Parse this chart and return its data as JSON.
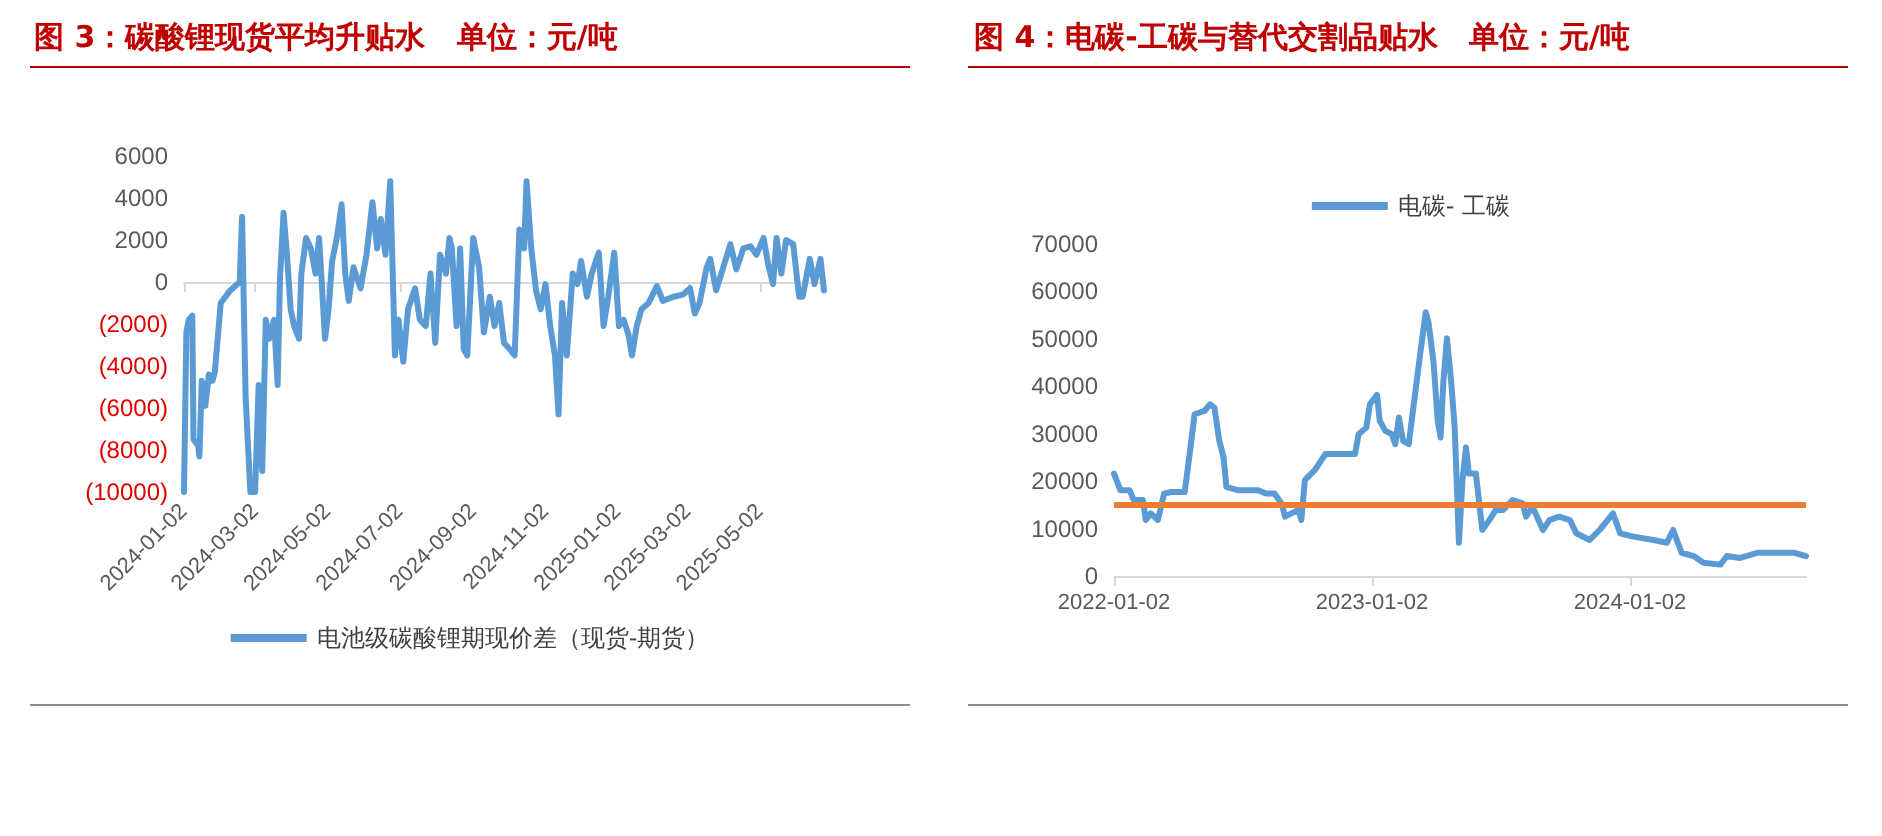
{
  "chart_data": [
    {
      "type": "line",
      "title": "图 3：碳酸锂现货平均升贴水   单位：元/吨",
      "xlim": [
        "2024-01-02",
        "2025-06-25"
      ],
      "xticks": [
        "2024-01-02",
        "2024-03-02",
        "2024-05-02",
        "2024-07-02",
        "2024-09-02",
        "2024-11-02",
        "2025-01-02",
        "2025-03-02",
        "2025-05-02"
      ],
      "ylim": [
        -10000,
        6000
      ],
      "yticks": [
        6000,
        4000,
        2000,
        0,
        {
          "value": -2000,
          "label": "(2000)"
        },
        {
          "value": -4000,
          "label": "(4000)"
        },
        {
          "value": -6000,
          "label": "(6000)"
        },
        {
          "value": -8000,
          "label": "(8000)"
        },
        {
          "value": -10000,
          "label": "(10000)"
        }
      ],
      "legend": "bottom",
      "marker": "none",
      "line_style": "solid",
      "series": [
        {
          "name": "电池级碳酸锂期现价差（现货-期货）",
          "color": "#5b9bd5",
          "x": [
            "2024-01-02",
            "2024-01-04",
            "2024-01-06",
            "2024-01-09",
            "2024-01-10",
            "2024-01-14",
            "2024-01-15",
            "2024-01-17",
            "2024-01-20",
            "2024-01-23",
            "2024-01-26",
            "2024-01-28",
            "2024-02-02",
            "2024-02-10",
            "2024-02-18",
            "2024-02-20",
            "2024-02-23",
            "2024-02-27",
            "2024-03-02",
            "2024-03-05",
            "2024-03-08",
            "2024-03-11",
            "2024-03-14",
            "2024-03-18",
            "2024-03-21",
            "2024-03-23",
            "2024-03-26",
            "2024-03-29",
            "2024-04-01",
            "2024-04-04",
            "2024-04-08",
            "2024-04-10",
            "2024-04-14",
            "2024-04-18",
            "2024-04-22",
            "2024-04-25",
            "2024-04-30",
            "2024-05-03",
            "2024-05-06",
            "2024-05-10",
            "2024-05-14",
            "2024-05-17",
            "2024-05-20",
            "2024-05-24",
            "2024-05-30",
            "2024-06-04",
            "2024-06-09",
            "2024-06-13",
            "2024-06-16",
            "2024-06-20",
            "2024-06-24",
            "2024-06-28",
            "2024-07-01",
            "2024-07-05",
            "2024-07-09",
            "2024-07-15",
            "2024-07-19",
            "2024-07-24",
            "2024-07-28",
            "2024-08-01",
            "2024-08-05",
            "2024-08-10",
            "2024-08-13",
            "2024-08-15",
            "2024-08-19",
            "2024-08-22",
            "2024-08-25",
            "2024-08-28",
            "2024-09-02",
            "2024-09-07",
            "2024-09-11",
            "2024-09-16",
            "2024-09-20",
            "2024-09-24",
            "2024-09-28",
            "2024-10-03",
            "2024-10-07",
            "2024-10-11",
            "2024-10-15",
            "2024-10-17",
            "2024-10-21",
            "2024-10-25",
            "2024-10-29",
            "2024-11-02",
            "2024-11-06",
            "2024-11-10",
            "2024-11-13",
            "2024-11-16",
            "2024-11-20",
            "2024-11-25",
            "2024-11-29",
            "2024-12-02",
            "2024-12-07",
            "2024-12-11",
            "2024-12-17",
            "2024-12-21",
            "2024-12-25",
            "2024-12-30",
            "2025-01-03",
            "2025-01-07",
            "2025-01-11",
            "2025-01-14",
            "2025-01-18",
            "2025-01-22",
            "2025-01-28",
            "2025-02-04",
            "2025-02-09",
            "2025-02-18",
            "2025-02-26",
            "2025-03-04",
            "2025-03-08",
            "2025-03-12",
            "2025-03-18",
            "2025-03-21",
            "2025-03-26",
            "2025-04-01",
            "2025-04-07",
            "2025-04-12",
            "2025-04-18",
            "2025-04-24",
            "2025-04-29",
            "2025-05-05",
            "2025-05-09",
            "2025-05-13",
            "2025-05-16",
            "2025-05-20",
            "2025-05-24",
            "2025-05-30",
            "2025-06-04",
            "2025-06-07",
            "2025-06-13",
            "2025-06-17",
            "2025-06-22",
            "2025-06-25"
          ],
          "values": [
            -10000,
            -2400,
            -1800,
            -1600,
            -7500,
            -7800,
            -8300,
            -4700,
            -5900,
            -4400,
            -4700,
            -4300,
            -1000,
            -400,
            0,
            3100,
            -5500,
            -10000,
            -10000,
            -4900,
            -9000,
            -1800,
            -2700,
            -1800,
            -4900,
            200,
            3300,
            1200,
            -1300,
            -2100,
            -2700,
            400,
            2100,
            1600,
            400,
            2100,
            -2700,
            -1300,
            1000,
            2100,
            3700,
            400,
            -900,
            700,
            -300,
            1300,
            3800,
            1600,
            3000,
            1300,
            4800,
            -3500,
            -1800,
            -3800,
            -1300,
            -300,
            -1800,
            -2100,
            400,
            -2900,
            1300,
            400,
            2100,
            1600,
            -2100,
            1600,
            -3200,
            -3500,
            2100,
            700,
            -2400,
            -700,
            -2100,
            -1000,
            -2900,
            -3200,
            -3500,
            2500,
            1600,
            4800,
            1600,
            -400,
            -1300,
            -100,
            -2100,
            -3500,
            -6300,
            -1000,
            -3500,
            400,
            -100,
            1000,
            -700,
            400,
            1400,
            -2100,
            -700,
            1400,
            -2100,
            -1800,
            -2500,
            -3500,
            -2100,
            -1300,
            -1000,
            -200,
            -900,
            -700,
            -600,
            -300,
            -1500,
            -1000,
            700,
            1100,
            -400,
            700,
            1800,
            600,
            1600,
            1700,
            1300,
            2100,
            800,
            -100,
            2100,
            400,
            2000,
            1800,
            -700,
            -700,
            1100,
            -100,
            1100,
            -400
          ]
        }
      ]
    },
    {
      "type": "line",
      "title": "图 4：电碳-工碳与替代交割品贴水   单位：元/吨",
      "xlim": [
        "2022-01-02",
        "2024-09-07"
      ],
      "xticks": [
        "2022-01-02",
        "2023-01-02",
        "2024-01-02"
      ],
      "ylim": [
        0,
        70000
      ],
      "yticks": [
        0,
        10000,
        20000,
        30000,
        40000,
        50000,
        60000,
        70000
      ],
      "grid": false,
      "legend": "top",
      "marker": "none",
      "line_style": "solid",
      "ref_lines": [
        {
          "axis": "y",
          "value": 15000,
          "color": "#ed7d31",
          "line_style": "solid"
        }
      ],
      "series": [
        {
          "name": "电碳- 工碳",
          "color": "#5b9bd5",
          "x": [
            "2022-01-02",
            "2022-01-11",
            "2022-01-24",
            "2022-01-30",
            "2022-02-12",
            "2022-02-16",
            "2022-02-23",
            "2022-03-05",
            "2022-03-14",
            "2022-03-24",
            "2022-04-12",
            "2022-04-19",
            "2022-04-26",
            "2022-05-10",
            "2022-05-18",
            "2022-05-24",
            "2022-05-31",
            "2022-06-06",
            "2022-06-10",
            "2022-06-26",
            "2022-07-25",
            "2022-08-05",
            "2022-08-17",
            "2022-08-27",
            "2022-09-01",
            "2022-09-10",
            "2022-09-20",
            "2022-09-24",
            "2022-09-29",
            "2022-10-13",
            "2022-10-28",
            "2022-11-06",
            "2022-12-09",
            "2022-12-14",
            "2022-12-25",
            "2022-12-30",
            "2023-01-09",
            "2023-01-13",
            "2023-01-21",
            "2023-01-30",
            "2023-02-04",
            "2023-02-09",
            "2023-02-15",
            "2023-02-23",
            "2023-03-05",
            "2023-03-11",
            "2023-03-19",
            "2023-03-23",
            "2023-03-30",
            "2023-04-05",
            "2023-04-09",
            "2023-04-13",
            "2023-04-18",
            "2023-04-24",
            "2023-04-29",
            "2023-05-05",
            "2023-05-10",
            "2023-05-15",
            "2023-05-19",
            "2023-05-29",
            "2023-06-07",
            "2023-06-17",
            "2023-06-26",
            "2023-07-06",
            "2023-07-20",
            "2023-08-03",
            "2023-08-08",
            "2023-08-17",
            "2023-09-01",
            "2023-09-10",
            "2023-09-24",
            "2023-10-09",
            "2023-10-18",
            "2023-11-06",
            "2023-11-20",
            "2023-12-09",
            "2023-12-19",
            "2024-01-07",
            "2024-02-04",
            "2024-02-23",
            "2024-03-03",
            "2024-03-15",
            "2024-04-01",
            "2024-04-15",
            "2024-05-09",
            "2024-05-18",
            "2024-06-06",
            "2024-06-30",
            "2024-08-21",
            "2024-09-07"
          ],
          "values": [
            21600,
            18100,
            18100,
            16000,
            16000,
            11800,
            13200,
            11800,
            17400,
            17700,
            17700,
            25700,
            34100,
            34800,
            36200,
            35500,
            28500,
            25000,
            18800,
            18100,
            18100,
            17400,
            17400,
            15300,
            12500,
            13200,
            13900,
            11800,
            20200,
            22300,
            25700,
            25700,
            25700,
            29900,
            31300,
            36200,
            38200,
            32700,
            30600,
            29900,
            27800,
            33400,
            28500,
            27800,
            39600,
            46600,
            55600,
            53400,
            45200,
            32700,
            29200,
            41000,
            50100,
            41000,
            31300,
            7000,
            20200,
            27100,
            21600,
            21600,
            9700,
            11800,
            13900,
            13900,
            16000,
            15300,
            12500,
            14600,
            9700,
            11800,
            12500,
            11800,
            9000,
            7600,
            9700,
            13200,
            9000,
            8300,
            7600,
            7000,
            9700,
            4900,
            4200,
            2800,
            2400,
            4200,
            3800,
            4900,
            4900,
            4200
          ]
        }
      ]
    }
  ]
}
